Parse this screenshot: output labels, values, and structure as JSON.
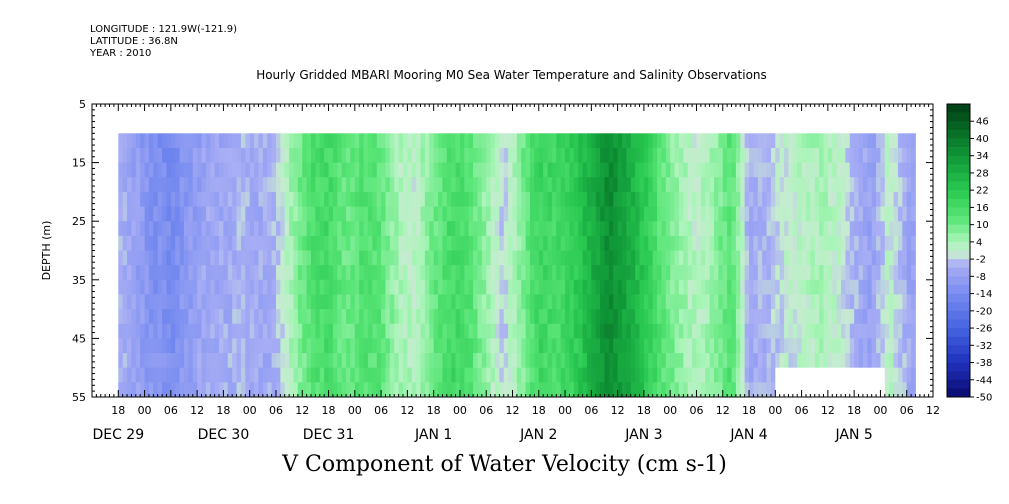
{
  "header": {
    "longitude": "LONGITUDE : 121.9W(-121.9)",
    "latitude": "LATITUDE : 36.8N",
    "year": "YEAR : 2010"
  },
  "chart_data": {
    "type": "heatmap",
    "title": "Hourly Gridded MBARI Mooring M0 Sea Water Temperature and Salinity Observations",
    "variable_label": "V Component of Water Velocity (cm s-1)",
    "ylabel": "DEPTH (m)",
    "ylim": [
      55,
      5
    ],
    "y_ticks": [
      5,
      15,
      25,
      35,
      45,
      55
    ],
    "x_hour_labels": [
      "18",
      "00",
      "06",
      "12",
      "18",
      "00",
      "06",
      "12",
      "18",
      "00",
      "06",
      "12",
      "18",
      "00",
      "06",
      "12",
      "18",
      "00",
      "06",
      "12",
      "18",
      "00",
      "06",
      "12",
      "18",
      "00",
      "06",
      "12",
      "18",
      "00",
      "06",
      "12",
      "18",
      "00",
      "06",
      "12",
      "18"
    ],
    "x_day_labels": [
      {
        "label": "DEC 29",
        "hour_offset": 0
      },
      {
        "label": "DEC 30",
        "hour_offset": 24
      },
      {
        "label": "DEC 31",
        "hour_offset": 48
      },
      {
        "label": "JAN  1",
        "hour_offset": 72
      },
      {
        "label": "JAN  2",
        "hour_offset": 96
      },
      {
        "label": "JAN  3",
        "hour_offset": 120
      },
      {
        "label": "JAN  4",
        "hour_offset": 144
      },
      {
        "label": "JAN  5",
        "hour_offset": 168
      }
    ],
    "x_range_hours": [
      -6,
      186
    ],
    "data_x_range_hours": [
      0,
      182
    ],
    "data_y_range_m": [
      10,
      55
    ],
    "colorbar": {
      "labels": [
        "46",
        "40",
        "34",
        "28",
        "22",
        "16",
        "10",
        "4",
        "-2",
        "-8",
        "-14",
        "-20",
        "-26",
        "-32",
        "-38",
        "-44",
        "-50"
      ],
      "min": -50,
      "max": 52,
      "step": 3
    },
    "field_profile": [
      {
        "h": 0,
        "v": -4
      },
      {
        "h": 4,
        "v": -8
      },
      {
        "h": 8,
        "v": -12
      },
      {
        "h": 12,
        "v": -14
      },
      {
        "h": 16,
        "v": -10
      },
      {
        "h": 20,
        "v": -6
      },
      {
        "h": 24,
        "v": -6
      },
      {
        "h": 28,
        "v": -4
      },
      {
        "h": 32,
        "v": -6
      },
      {
        "h": 36,
        "v": -4
      },
      {
        "h": 40,
        "v": 6
      },
      {
        "h": 44,
        "v": 14
      },
      {
        "h": 48,
        "v": 16
      },
      {
        "h": 52,
        "v": 10
      },
      {
        "h": 56,
        "v": 14
      },
      {
        "h": 60,
        "v": 12
      },
      {
        "h": 64,
        "v": 4
      },
      {
        "h": 68,
        "v": 2
      },
      {
        "h": 72,
        "v": 10
      },
      {
        "h": 76,
        "v": 16
      },
      {
        "h": 80,
        "v": 14
      },
      {
        "h": 84,
        "v": 6
      },
      {
        "h": 88,
        "v": -2
      },
      {
        "h": 92,
        "v": 8
      },
      {
        "h": 96,
        "v": 18
      },
      {
        "h": 100,
        "v": 16
      },
      {
        "h": 104,
        "v": 20
      },
      {
        "h": 108,
        "v": 28
      },
      {
        "h": 112,
        "v": 36
      },
      {
        "h": 116,
        "v": 30
      },
      {
        "h": 120,
        "v": 22
      },
      {
        "h": 124,
        "v": 12
      },
      {
        "h": 128,
        "v": 6
      },
      {
        "h": 132,
        "v": 2
      },
      {
        "h": 136,
        "v": 6
      },
      {
        "h": 140,
        "v": 14
      },
      {
        "h": 144,
        "v": -6
      },
      {
        "h": 148,
        "v": -4
      },
      {
        "h": 152,
        "v": 0
      },
      {
        "h": 156,
        "v": 2
      },
      {
        "h": 160,
        "v": 4
      },
      {
        "h": 164,
        "v": 2
      },
      {
        "h": 168,
        "v": -4
      },
      {
        "h": 172,
        "v": -8
      },
      {
        "h": 176,
        "v": 2
      },
      {
        "h": 180,
        "v": -6
      },
      {
        "h": 182,
        "v": -8
      }
    ],
    "missing_region": {
      "h_from": 150,
      "h_to": 175,
      "depth_from": 50,
      "depth_to": 55
    }
  }
}
